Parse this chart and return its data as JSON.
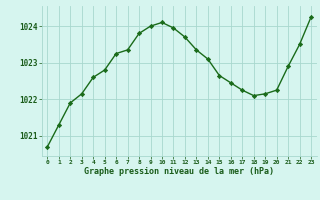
{
  "x": [
    0,
    1,
    2,
    3,
    4,
    5,
    6,
    7,
    8,
    9,
    10,
    11,
    12,
    13,
    14,
    15,
    16,
    17,
    18,
    19,
    20,
    21,
    22,
    23
  ],
  "y": [
    1020.7,
    1021.3,
    1021.9,
    1022.15,
    1022.6,
    1022.8,
    1023.25,
    1023.35,
    1023.8,
    1024.0,
    1024.1,
    1023.95,
    1023.7,
    1023.35,
    1023.1,
    1022.65,
    1022.45,
    1022.25,
    1022.1,
    1022.15,
    1022.25,
    1022.9,
    1023.5,
    1024.25
  ],
  "line_color": "#1a6b1a",
  "marker": "D",
  "marker_size": 2.2,
  "bg_color": "#d6f5ef",
  "grid_color": "#a8d8ce",
  "xlabel": "Graphe pression niveau de la mer (hPa)",
  "xlabel_color": "#1a5c1a",
  "tick_color": "#1a5c1a",
  "ylabel_ticks": [
    1021,
    1022,
    1023,
    1024
  ],
  "ylim": [
    1020.45,
    1024.55
  ],
  "xlim": [
    -0.5,
    23.5
  ],
  "xtick_labels": [
    "0",
    "1",
    "2",
    "3",
    "4",
    "5",
    "6",
    "7",
    "8",
    "9",
    "10",
    "11",
    "12",
    "13",
    "14",
    "15",
    "16",
    "17",
    "18",
    "19",
    "20",
    "21",
    "22",
    "23"
  ]
}
